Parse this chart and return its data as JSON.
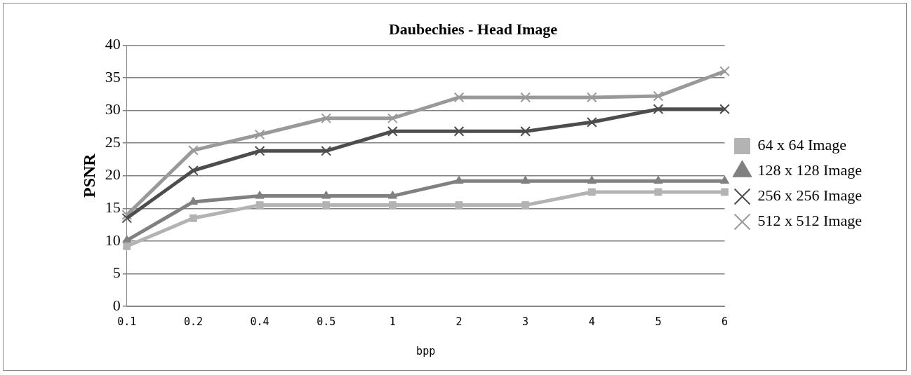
{
  "chart_data": {
    "type": "line",
    "title": "Daubechies - Head Image",
    "xlabel": "bpp",
    "ylabel": "PSNR",
    "categories": [
      "0.1",
      "0.2",
      "0.4",
      "0.5",
      "1",
      "2",
      "3",
      "4",
      "5",
      "6"
    ],
    "series": [
      {
        "name": "64 x 64 Image",
        "color": "#b3b3b3",
        "marker": "square",
        "values": [
          9.2,
          13.5,
          15.5,
          15.5,
          15.5,
          15.5,
          15.5,
          17.5,
          17.5,
          17.5
        ]
      },
      {
        "name": "128 x 128 Image",
        "color": "#808080",
        "marker": "triangle",
        "values": [
          10.1,
          16,
          16.9,
          16.9,
          16.9,
          19.2,
          19.2,
          19.2,
          19.2,
          19.2
        ]
      },
      {
        "name": "256 x 256 Image",
        "color": "#4d4d4d",
        "marker": "cross",
        "values": [
          13.5,
          20.8,
          23.8,
          23.8,
          26.8,
          26.8,
          26.8,
          28.2,
          30.2,
          30.2
        ]
      },
      {
        "name": "512 x 512 Image",
        "color": "#999999",
        "marker": "cross",
        "values": [
          14,
          23.9,
          26.3,
          28.8,
          28.8,
          32,
          32,
          32,
          32.2,
          36
        ]
      }
    ],
    "ylim": [
      0,
      40
    ],
    "yticks": [
      0,
      5,
      10,
      15,
      20,
      25,
      30,
      35,
      40
    ],
    "grid": "y",
    "legend": "right",
    "line_style": "solid"
  }
}
